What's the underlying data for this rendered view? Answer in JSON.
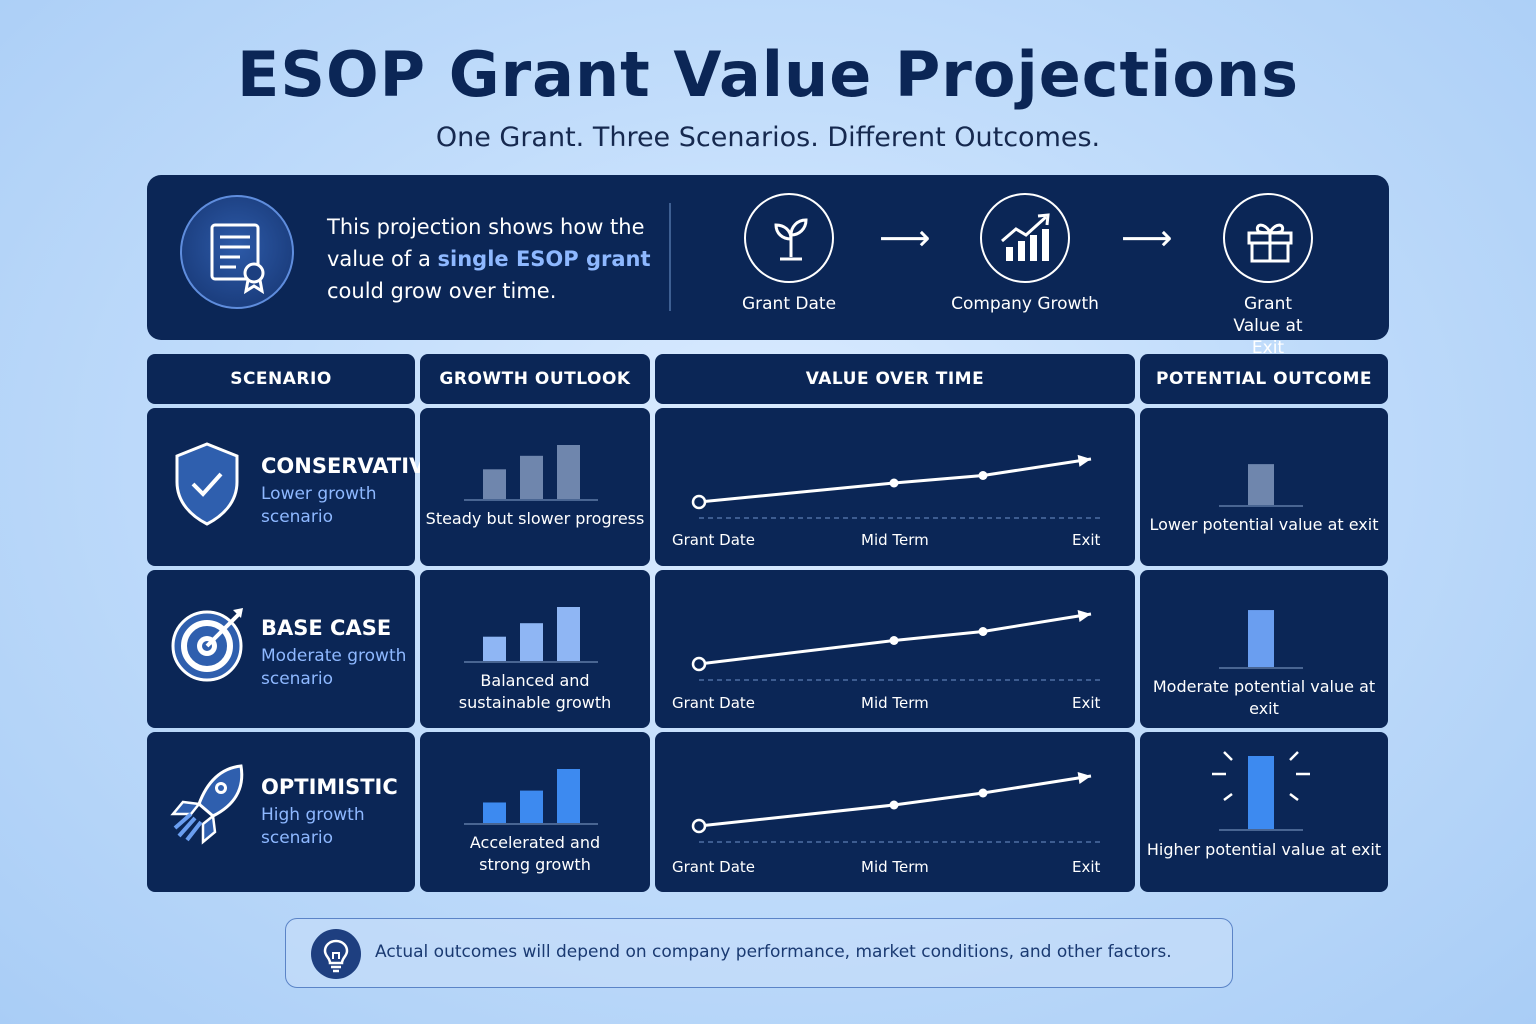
{
  "title": "ESOP Grant Value Projections",
  "subtitle": "One Grant. Three Scenarios. Different Outcomes.",
  "intro": {
    "text_before": "This projection shows how the value of a",
    "highlight": "single ESOP grant",
    "text_after": "could grow over time.",
    "icon": "certificate-icon",
    "steps": [
      {
        "label": "Grant Date",
        "icon": "sprout-icon"
      },
      {
        "label": "Company Growth",
        "icon": "growth-chart-icon"
      },
      {
        "label": "Grant Value at Exit",
        "icon": "gift-icon"
      }
    ]
  },
  "headers": [
    "SCENARIO",
    "GROWTH OUTLOOK",
    "VALUE OVER TIME",
    "POTENTIAL OUTCOME"
  ],
  "rows": [
    {
      "name": "CONSERVATIVE",
      "desc": "Lower growth scenario",
      "icon": "shield-check-icon",
      "outlook": "Steady but slower progress",
      "outcome": "Lower potential value at exit",
      "outlook_bars": [
        0.55,
        0.8,
        1.0
      ],
      "outlook_color": "#6f86ad",
      "value_points": [
        0,
        0.38,
        0.53,
        0.86
      ],
      "outcome_level": 0.56,
      "outcome_color": "#6f86ad"
    },
    {
      "name": "BASE CASE",
      "desc": "Moderate growth scenario",
      "icon": "target-icon",
      "outlook": "Balanced and sustainable growth",
      "outcome": "Moderate potential value at exit",
      "outlook_bars": [
        0.45,
        0.7,
        1.0
      ],
      "outlook_color": "#8fb6f4",
      "value_points": [
        0,
        0.47,
        0.65,
        1.0
      ],
      "outcome_level": 0.78,
      "outcome_color": "#6a9ef0"
    },
    {
      "name": "OPTIMISTIC",
      "desc": "High growth scenario",
      "icon": "rocket-icon",
      "outlook": "Accelerated and strong growth",
      "outcome": "Higher potential value at exit",
      "outlook_bars": [
        0.38,
        0.6,
        1.0
      ],
      "outlook_color": "#3d8af0",
      "value_points": [
        0,
        0.42,
        0.66,
        1.0
      ],
      "outcome_level": 1.0,
      "outcome_color": "#3d8af0"
    }
  ],
  "timeline_labels": [
    "Grant Date",
    "Mid Term",
    "Exit"
  ],
  "footer_note": "Actual outcomes will depend on company performance, market conditions, and other factors.",
  "footer_icon": "lightbulb-icon",
  "colors": {
    "navy": "#0b2656",
    "accent": "#8eb8ff",
    "background": "#c2ddfb"
  }
}
